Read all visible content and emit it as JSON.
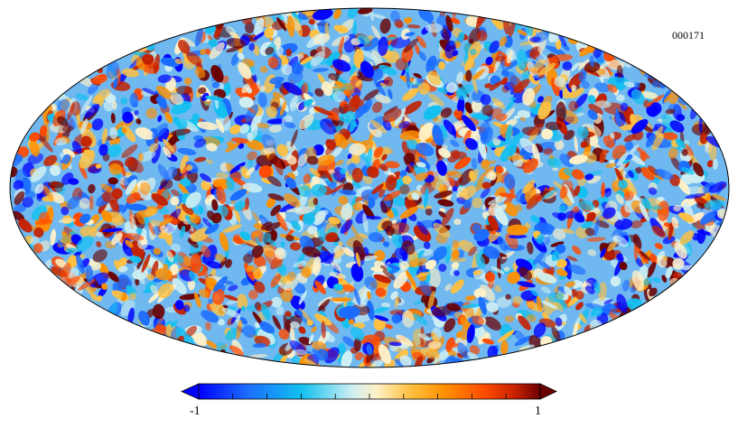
{
  "map": {
    "projection": "mollweide",
    "id_label": "000171"
  },
  "colorbar": {
    "min_label": "-1",
    "max_label": "1",
    "ticks": 11,
    "colors": [
      "#0000ff",
      "#1a6cff",
      "#12c0f0",
      "#cfeff2",
      "#fff1c8",
      "#ffc040",
      "#ff9000",
      "#ff4a00",
      "#c32000",
      "#6b0000"
    ]
  }
}
